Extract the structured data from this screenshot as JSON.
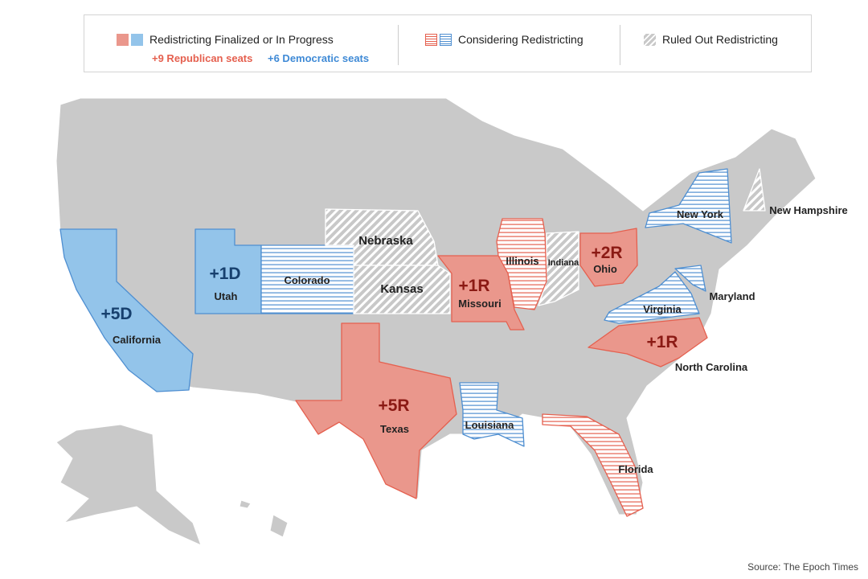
{
  "legend": {
    "finalized": {
      "label": "Redistricting Finalized or In Progress",
      "republican": "+9 Republican seats",
      "democratic": "+6 Democratic seats"
    },
    "considering": {
      "label": "Considering Redistricting"
    },
    "ruled_out": {
      "label": "Ruled Out Redistricting"
    }
  },
  "colors": {
    "republican_fill": "#ea978c",
    "republican_line": "#e5604f",
    "democratic_fill": "#93c4ea",
    "democratic_line": "#4f8fd1",
    "ruled_out": "#c8c8c8",
    "base": "#c9c9c9",
    "rep_text": "#e5604f",
    "dem_text": "#3f8ad6",
    "rep_label": "#8b1a14",
    "dem_label": "#17406e"
  },
  "states": {
    "california": {
      "name": "California",
      "seats": "+5D",
      "status": "finalized-democratic"
    },
    "utah": {
      "name": "Utah",
      "seats": "+1D",
      "status": "finalized-democratic"
    },
    "colorado": {
      "name": "Colorado",
      "status": "considering-democratic"
    },
    "nebraska": {
      "name": "Nebraska",
      "status": "ruled-out"
    },
    "kansas": {
      "name": "Kansas",
      "status": "ruled-out"
    },
    "missouri": {
      "name": "Missouri",
      "seats": "+1R",
      "status": "finalized-republican"
    },
    "illinois": {
      "name": "Illinois",
      "status": "considering-democratic"
    },
    "indiana": {
      "name": "Indiana",
      "status": "ruled-out"
    },
    "ohio": {
      "name": "Ohio",
      "seats": "+2R",
      "status": "finalized-republican"
    },
    "texas": {
      "name": "Texas",
      "seats": "+5R",
      "status": "finalized-republican"
    },
    "louisiana": {
      "name": "Louisiana",
      "status": "considering-republican"
    },
    "florida": {
      "name": "Florida",
      "status": "considering-republican"
    },
    "north_carolina": {
      "name": "North Carolina",
      "seats": "+1R",
      "status": "finalized-republican"
    },
    "virginia": {
      "name": "Virginia",
      "status": "considering-democratic"
    },
    "maryland": {
      "name": "Maryland",
      "status": "considering-democratic"
    },
    "new_york": {
      "name": "New York",
      "status": "considering-democratic"
    },
    "new_hampshire": {
      "name": "New Hampshire",
      "status": "ruled-out"
    }
  },
  "source": "Source: The Epoch Times"
}
